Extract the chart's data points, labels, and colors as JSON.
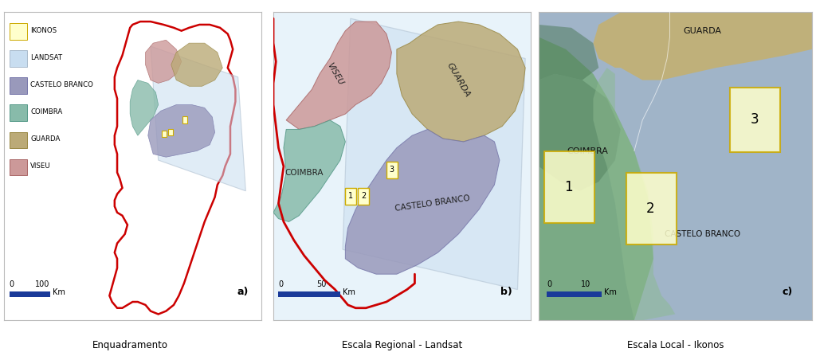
{
  "fig_width": 10.24,
  "fig_height": 4.42,
  "bg_color": "#ffffff",
  "portugal_border_color": "#cc0000",
  "ikonos_box_color": "#ffffcc",
  "ikonos_box_edge": "#ccaa00",
  "landsat_color": "#c8ddf0",
  "landsat_edge": "#aabbcc",
  "colors": {
    "CASTELO_BRANCO": "#9999bb",
    "COIMBRA": "#88bbaa",
    "GUARDA": "#bbaa77",
    "VISEU": "#cc9999"
  },
  "legend_items": [
    [
      "IKONOS",
      "#ffffcc",
      "#ccaa00"
    ],
    [
      "LANDSAT",
      "#c8ddf0",
      "#aabbcc"
    ],
    [
      "CASTELO BRANCO",
      "#9999bb",
      "#7777aa"
    ],
    [
      "COIMBRA",
      "#88bbaa",
      "#559988"
    ],
    [
      "GUARDA",
      "#bbaa77",
      "#998844"
    ],
    [
      "VISEU",
      "#cc9999",
      "#aa6666"
    ]
  ],
  "panel_a_title": "Enquadramento",
  "panel_b_title": "Escala Regional - Landsat",
  "panel_c_title": "Escala Local - Ikonos",
  "font_family": "DejaVu Sans"
}
